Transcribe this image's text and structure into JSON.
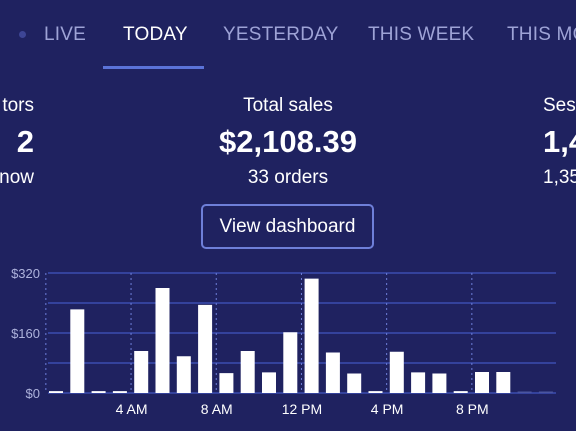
{
  "tabs": [
    {
      "label": "LIVE",
      "active": false
    },
    {
      "label": "TODAY",
      "active": true
    },
    {
      "label": "YESTERDAY",
      "active": false
    },
    {
      "label": "THIS WEEK",
      "active": false
    },
    {
      "label": "THIS MO",
      "active": false
    }
  ],
  "stats": {
    "visitors": {
      "label": "tors",
      "value": "2",
      "sub": "now"
    },
    "sales": {
      "label": "Total sales",
      "value": "$2,108.39",
      "sub": "33 orders"
    },
    "sessions": {
      "label": "Ses",
      "value": "1,4",
      "sub": "1,35"
    }
  },
  "dashboard_button": {
    "label": "View dashboard"
  },
  "colors": {
    "background": "#1f2260",
    "accent": "#5b73d8",
    "tab_inactive": "#9ea3d6",
    "bar": "#ffffff",
    "gridline": "#3b4db0"
  },
  "chart_data": {
    "type": "bar",
    "title": "",
    "xlabel": "",
    "ylabel": "",
    "ylim": [
      0,
      320
    ],
    "yticks": [
      "$0",
      "$160",
      "$320"
    ],
    "xtick_labels": [
      {
        "hour": 4,
        "label": "4 AM"
      },
      {
        "hour": 8,
        "label": "8 AM"
      },
      {
        "hour": 12,
        "label": "12 PM"
      },
      {
        "hour": 16,
        "label": "4 PM"
      },
      {
        "hour": 20,
        "label": "8 PM"
      }
    ],
    "categories": [
      0,
      1,
      2,
      3,
      4,
      5,
      6,
      7,
      8,
      9,
      10,
      11,
      12,
      13,
      14,
      15,
      16,
      17,
      18,
      19,
      20,
      21,
      22,
      23
    ],
    "values": [
      5,
      223,
      5,
      5,
      112,
      280,
      98,
      235,
      53,
      112,
      55,
      162,
      305,
      108,
      52,
      5,
      110,
      55,
      52,
      5,
      56,
      56,
      0,
      0
    ],
    "grid": true
  }
}
